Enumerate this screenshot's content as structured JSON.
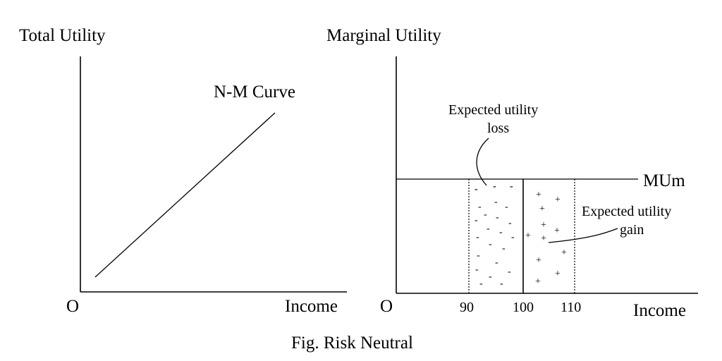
{
  "left_panel": {
    "y_axis_label": "Total Utility",
    "curve_label": "N-M Curve",
    "origin_label": "O",
    "x_axis_label": "Income"
  },
  "right_panel": {
    "y_axis_label": "Marginal Utility",
    "mu_line_label": "MUm",
    "origin_label": "O",
    "x_axis_label": "Income",
    "ticks": [
      "90",
      "100",
      "110"
    ],
    "loss_label_line1": "Expected utility",
    "loss_label_line2": "loss",
    "gain_label_line1": "Expected utility",
    "gain_label_line2": "gain",
    "loss_symbol": "-",
    "gain_symbol": "+"
  },
  "caption": "Fig. Risk Neutral"
}
